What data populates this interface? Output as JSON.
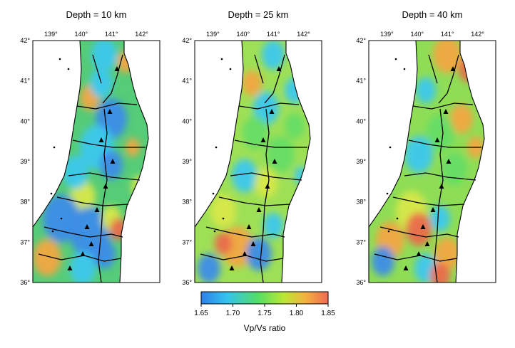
{
  "panels": [
    {
      "title": "Depth = 10 km",
      "lon_ticks": [
        "139°",
        "140°",
        "141°",
        "142°"
      ],
      "lat_ticks": [
        "42°",
        "41°",
        "40°",
        "39°",
        "38°",
        "37°",
        "36°"
      ]
    },
    {
      "title": "Depth = 25 km",
      "lon_ticks": [
        "139°",
        "140°",
        "141°",
        "142°"
      ],
      "lat_ticks": [
        "42°",
        "41°",
        "40°",
        "39°",
        "38°",
        "37°",
        "36°"
      ]
    },
    {
      "title": "Depth = 40 km",
      "lon_ticks": [
        "139°",
        "140°",
        "141°",
        "142°"
      ],
      "lat_ticks": [
        "42°",
        "41°",
        "40°",
        "39°",
        "38°",
        "37°",
        "36°"
      ]
    }
  ],
  "colorbar": {
    "title": "Vp/Vs ratio",
    "tick_labels": [
      "1.65",
      "1.70",
      "1.75",
      "1.80",
      "1.85"
    ],
    "colors": [
      "#2f7fe6",
      "#33c3ee",
      "#55dd66",
      "#bbe833",
      "#f3b240",
      "#ee6a55"
    ]
  },
  "map": {
    "lon_range": [
      138.4,
      142.6
    ],
    "lat_range": [
      36,
      42
    ]
  },
  "colors": {
    "blue": "#3c8ce8",
    "cyan": "#3cc8ee",
    "green": "#66dd66",
    "yellow": "#d8e84a",
    "orange": "#f2a642",
    "red": "#ea6a4c"
  }
}
